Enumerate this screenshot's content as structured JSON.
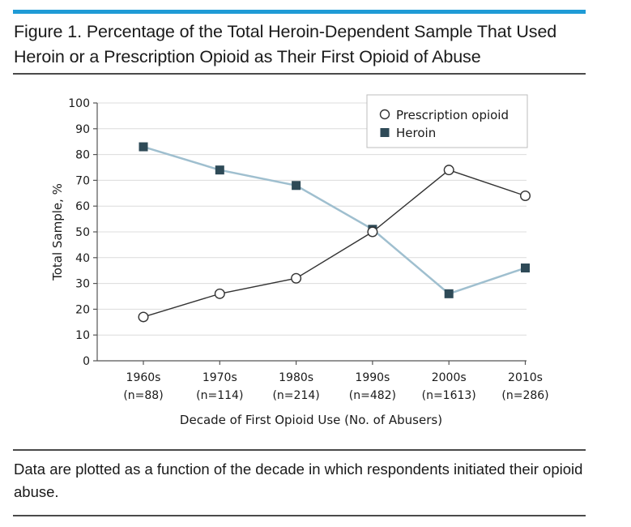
{
  "figure": {
    "title": "Figure 1. Percentage of the Total Heroin-Dependent Sample That Used Heroin or a Prescription Opioid as Their First Opioid of Abuse",
    "caption": "Data are plotted as a function of the decade in which respondents initiated their opioid abuse.",
    "accent_color": "#1f9bd6"
  },
  "chart_data": {
    "type": "line",
    "categories": [
      "1960s",
      "1970s",
      "1980s",
      "1990s",
      "2000s",
      "2010s"
    ],
    "category_sublabels": [
      "(n=88)",
      "(n=114)",
      "(n=214)",
      "(n=482)",
      "(n=1613)",
      "(n=286)"
    ],
    "xlabel": "Decade of First Opioid Use (No. of Abusers)",
    "ylabel": "Total Sample, %",
    "ylim": [
      0,
      100
    ],
    "yticks": [
      0,
      10,
      20,
      30,
      40,
      50,
      60,
      70,
      80,
      90,
      100
    ],
    "grid": true,
    "legend_position": "top-right",
    "series": [
      {
        "name": "Prescription opioid",
        "marker": "open-circle",
        "line_color": "#333333",
        "values": [
          17,
          26,
          32,
          50,
          74,
          64
        ]
      },
      {
        "name": "Heroin",
        "marker": "filled-square",
        "marker_color": "#2e4a57",
        "line_color": "#9fbfcf",
        "values": [
          83,
          74,
          68,
          51,
          26,
          36
        ]
      }
    ]
  }
}
